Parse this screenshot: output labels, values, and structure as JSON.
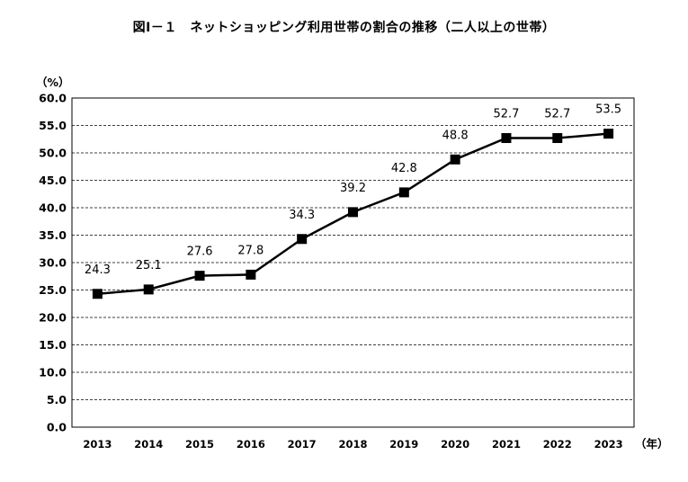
{
  "chart_data": {
    "type": "line",
    "title": "図Ⅰ－１　ネットショッピング利用世帯の割合の推移（二人以上の世帯）",
    "ylabel": "（%）",
    "xlabel": "（年）",
    "categories": [
      "2013",
      "2014",
      "2015",
      "2016",
      "2017",
      "2018",
      "2019",
      "2020",
      "2021",
      "2022",
      "2023"
    ],
    "series": [
      {
        "values": [
          24.3,
          25.1,
          27.6,
          27.8,
          34.3,
          39.2,
          42.8,
          48.8,
          52.7,
          52.7,
          53.5
        ]
      }
    ],
    "data_labels": [
      "24.3",
      "25.1",
      "27.6",
      "27.8",
      "34.3",
      "39.2",
      "42.8",
      "48.8",
      "52.7",
      "52.7",
      "53.5"
    ],
    "ylim": [
      0,
      60
    ],
    "ytick_labels": [
      "0.0",
      "5.0",
      "10.0",
      "15.0",
      "20.0",
      "25.0",
      "30.0",
      "35.0",
      "40.0",
      "45.0",
      "50.0",
      "55.0",
      "60.0"
    ],
    "grid": true,
    "grid_style": "dashed",
    "marker": "square",
    "line_color": "#000000",
    "legend": "none"
  }
}
